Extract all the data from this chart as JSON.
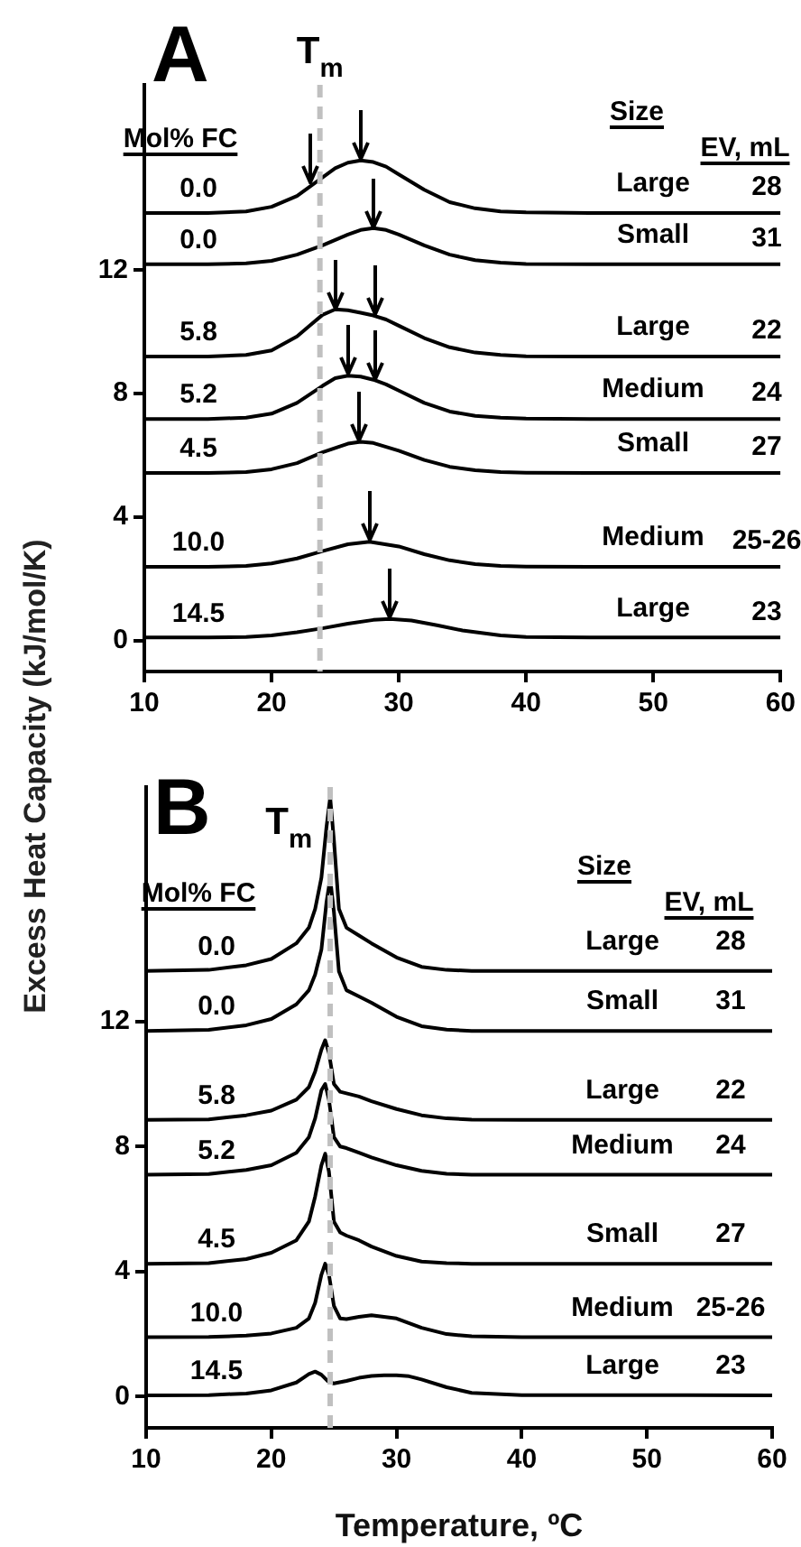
{
  "chart_data": [
    {
      "type": "line",
      "title": "A",
      "ylabel": "Excess Heat Capacity (kJ/mol/K)",
      "xlim": [
        10,
        60
      ],
      "xticks": [
        10,
        20,
        30,
        40,
        50,
        60
      ],
      "ylim": [
        -1,
        18
      ],
      "yticks": [
        0,
        4,
        8,
        12
      ],
      "marker": "none",
      "legend": false,
      "ref_lines": [
        {
          "axis": "x",
          "value": 23.8,
          "label": "T$_{m}$",
          "color": "#c0c0c0",
          "line_style": "dashed"
        }
      ],
      "series": [
        {
          "color": "#000000",
          "x": [
            10,
            15,
            18,
            20,
            22,
            23,
            24,
            25,
            26,
            27,
            28,
            29,
            30,
            32,
            34,
            36,
            38,
            40,
            45,
            60
          ],
          "values": [
            13.85,
            13.85,
            13.9,
            14.05,
            14.4,
            14.7,
            15.0,
            15.3,
            15.48,
            15.55,
            15.5,
            15.35,
            15.1,
            14.6,
            14.2,
            14.0,
            13.9,
            13.87,
            13.85,
            13.85
          ]
        },
        {
          "color": "#000000",
          "x": [
            10,
            15,
            18,
            20,
            22,
            24,
            26,
            27,
            28,
            29,
            30,
            32,
            34,
            36,
            38,
            40,
            45,
            60
          ],
          "values": [
            12.19,
            12.19,
            12.22,
            12.3,
            12.5,
            12.8,
            13.15,
            13.3,
            13.36,
            13.3,
            13.15,
            12.8,
            12.5,
            12.32,
            12.24,
            12.2,
            12.19,
            12.19
          ]
        },
        {
          "color": "#000000",
          "x": [
            10,
            15,
            18,
            20,
            22,
            23,
            24,
            25,
            26,
            27,
            28,
            29,
            30,
            32,
            34,
            36,
            38,
            40,
            45,
            60
          ],
          "values": [
            9.2,
            9.2,
            9.25,
            9.4,
            9.85,
            10.2,
            10.55,
            10.73,
            10.7,
            10.62,
            10.53,
            10.4,
            10.2,
            9.8,
            9.5,
            9.33,
            9.25,
            9.21,
            9.2,
            9.2
          ]
        },
        {
          "color": "#000000",
          "x": [
            10,
            15,
            18,
            20,
            22,
            24,
            25,
            26,
            27,
            28,
            29,
            30,
            32,
            34,
            36,
            38,
            40,
            45,
            60
          ],
          "values": [
            7.18,
            7.18,
            7.22,
            7.35,
            7.7,
            8.25,
            8.5,
            8.58,
            8.55,
            8.45,
            8.3,
            8.1,
            7.7,
            7.42,
            7.28,
            7.22,
            7.19,
            7.18,
            7.18
          ]
        },
        {
          "color": "#000000",
          "x": [
            10,
            15,
            18,
            20,
            22,
            24,
            26,
            27,
            28,
            30,
            32,
            34,
            36,
            38,
            40,
            45,
            60
          ],
          "values": [
            5.43,
            5.43,
            5.46,
            5.55,
            5.75,
            6.1,
            6.38,
            6.44,
            6.4,
            6.15,
            5.85,
            5.63,
            5.52,
            5.46,
            5.44,
            5.43,
            5.43
          ]
        },
        {
          "color": "#000000",
          "x": [
            10,
            15,
            18,
            20,
            22,
            24,
            26,
            27.7,
            30,
            32,
            34,
            36,
            38,
            40,
            45,
            60
          ],
          "values": [
            2.39,
            2.39,
            2.42,
            2.5,
            2.66,
            2.9,
            3.12,
            3.2,
            3.05,
            2.8,
            2.6,
            2.48,
            2.42,
            2.4,
            2.39,
            2.39
          ]
        },
        {
          "color": "#000000",
          "x": [
            10,
            15,
            18,
            20,
            22,
            24,
            26,
            28,
            29.3,
            31,
            33,
            35,
            38,
            40,
            45,
            60
          ],
          "values": [
            0.1,
            0.1,
            0.12,
            0.17,
            0.27,
            0.4,
            0.55,
            0.67,
            0.7,
            0.65,
            0.5,
            0.33,
            0.17,
            0.12,
            0.1,
            0.1
          ]
        }
      ],
      "annotations": [
        "Mol% FC",
        "Size",
        "EV, mL",
        "0.0",
        "Large",
        "28",
        "0.0",
        "Small",
        "31",
        "5.8",
        "Large",
        "22",
        "5.2",
        "Medium",
        "24",
        "4.5",
        "Small",
        "27",
        "10.0",
        "Medium",
        "25-26",
        "14.5",
        "Large",
        "23"
      ]
    },
    {
      "type": "line",
      "title": "B",
      "xlabel": "Temperature, ºC",
      "xlim": [
        10,
        60
      ],
      "xticks": [
        10,
        20,
        30,
        40,
        50,
        60
      ],
      "ylim": [
        -1,
        19.5
      ],
      "yticks": [
        0,
        4,
        8,
        12
      ],
      "marker": "none",
      "legend": false,
      "ref_lines": [
        {
          "axis": "x",
          "value": 24.7,
          "label": "T$_{m}$",
          "color": "#c0c0c0",
          "line_style": "dashed"
        }
      ],
      "series": [
        {
          "color": "#000000",
          "x": [
            10,
            15,
            18,
            20,
            22,
            23,
            23.5,
            24,
            24.4,
            24.7,
            25,
            25.4,
            26,
            27,
            28,
            30,
            32,
            34,
            36,
            40,
            60
          ],
          "values": [
            13.62,
            13.65,
            13.8,
            14.0,
            14.5,
            15.0,
            15.6,
            16.6,
            18.2,
            19.17,
            17.8,
            15.6,
            15.0,
            14.75,
            14.5,
            14.05,
            13.75,
            13.65,
            13.62,
            13.62,
            13.62
          ]
        },
        {
          "color": "#000000",
          "x": [
            10,
            15,
            18,
            20,
            22,
            23,
            23.5,
            24,
            24.4,
            24.7,
            25,
            25.4,
            26,
            27,
            28,
            30,
            32,
            34,
            36,
            40,
            60
          ],
          "values": [
            11.7,
            11.73,
            11.88,
            12.08,
            12.55,
            13.0,
            13.5,
            14.3,
            15.8,
            16.57,
            15.5,
            13.6,
            13.0,
            12.8,
            12.6,
            12.15,
            11.85,
            11.74,
            11.7,
            11.7,
            11.7
          ]
        },
        {
          "color": "#000000",
          "x": [
            10,
            15,
            18,
            20,
            22,
            23,
            23.5,
            24,
            24.3,
            24.6,
            25,
            25.5,
            26,
            27,
            28,
            30,
            32,
            34,
            36,
            40,
            60
          ],
          "values": [
            8.85,
            8.87,
            9.0,
            9.15,
            9.5,
            9.9,
            10.4,
            11.1,
            11.4,
            11.0,
            10.0,
            9.75,
            9.7,
            9.6,
            9.45,
            9.2,
            9.0,
            8.9,
            8.86,
            8.85,
            8.85
          ]
        },
        {
          "color": "#000000",
          "x": [
            10,
            15,
            18,
            20,
            22,
            23,
            23.5,
            24,
            24.3,
            24.6,
            25,
            25.5,
            26,
            27,
            28,
            30,
            32,
            34,
            36,
            40,
            60
          ],
          "values": [
            7.1,
            7.12,
            7.25,
            7.4,
            7.8,
            8.3,
            8.9,
            9.8,
            10.0,
            9.5,
            8.3,
            8.0,
            7.95,
            7.8,
            7.65,
            7.4,
            7.22,
            7.13,
            7.1,
            7.1,
            7.1
          ]
        },
        {
          "color": "#000000",
          "x": [
            10,
            15,
            18,
            20,
            22,
            23,
            23.5,
            24,
            24.3,
            24.6,
            25,
            25.5,
            26,
            27,
            28,
            30,
            32,
            34,
            36,
            40,
            60
          ],
          "values": [
            4.25,
            4.27,
            4.4,
            4.6,
            5.0,
            5.6,
            6.4,
            7.4,
            7.77,
            7.2,
            5.6,
            5.25,
            5.15,
            5.0,
            4.8,
            4.5,
            4.32,
            4.27,
            4.25,
            4.25,
            4.25
          ]
        },
        {
          "color": "#000000",
          "x": [
            10,
            15,
            18,
            20,
            22,
            23,
            23.5,
            24,
            24.3,
            24.6,
            25,
            25.5,
            26,
            27,
            28,
            30,
            32,
            34,
            36,
            40,
            60
          ],
          "values": [
            1.9,
            1.91,
            1.95,
            2.02,
            2.2,
            2.5,
            3.0,
            3.9,
            4.25,
            3.9,
            2.9,
            2.5,
            2.48,
            2.55,
            2.6,
            2.5,
            2.2,
            2.0,
            1.93,
            1.9,
            1.9
          ]
        },
        {
          "color": "#000000",
          "x": [
            10,
            15,
            18,
            20,
            22,
            23,
            23.5,
            24,
            24.5,
            25,
            26,
            27,
            28,
            29,
            30,
            31,
            32,
            34,
            36,
            40,
            60
          ],
          "values": [
            0.04,
            0.05,
            0.1,
            0.2,
            0.45,
            0.72,
            0.8,
            0.7,
            0.5,
            0.42,
            0.5,
            0.6,
            0.66,
            0.68,
            0.68,
            0.65,
            0.55,
            0.3,
            0.12,
            0.05,
            0.04
          ]
        }
      ],
      "annotations": [
        "Mol% FC",
        "Size",
        "EV, mL",
        "0.0",
        "Large",
        "28",
        "0.0",
        "Small",
        "31",
        "5.8",
        "Large",
        "22",
        "5.2",
        "Medium",
        "24",
        "4.5",
        "Small",
        "27",
        "10.0",
        "Medium",
        "25-26",
        "14.5",
        "Large",
        "23"
      ]
    }
  ]
}
